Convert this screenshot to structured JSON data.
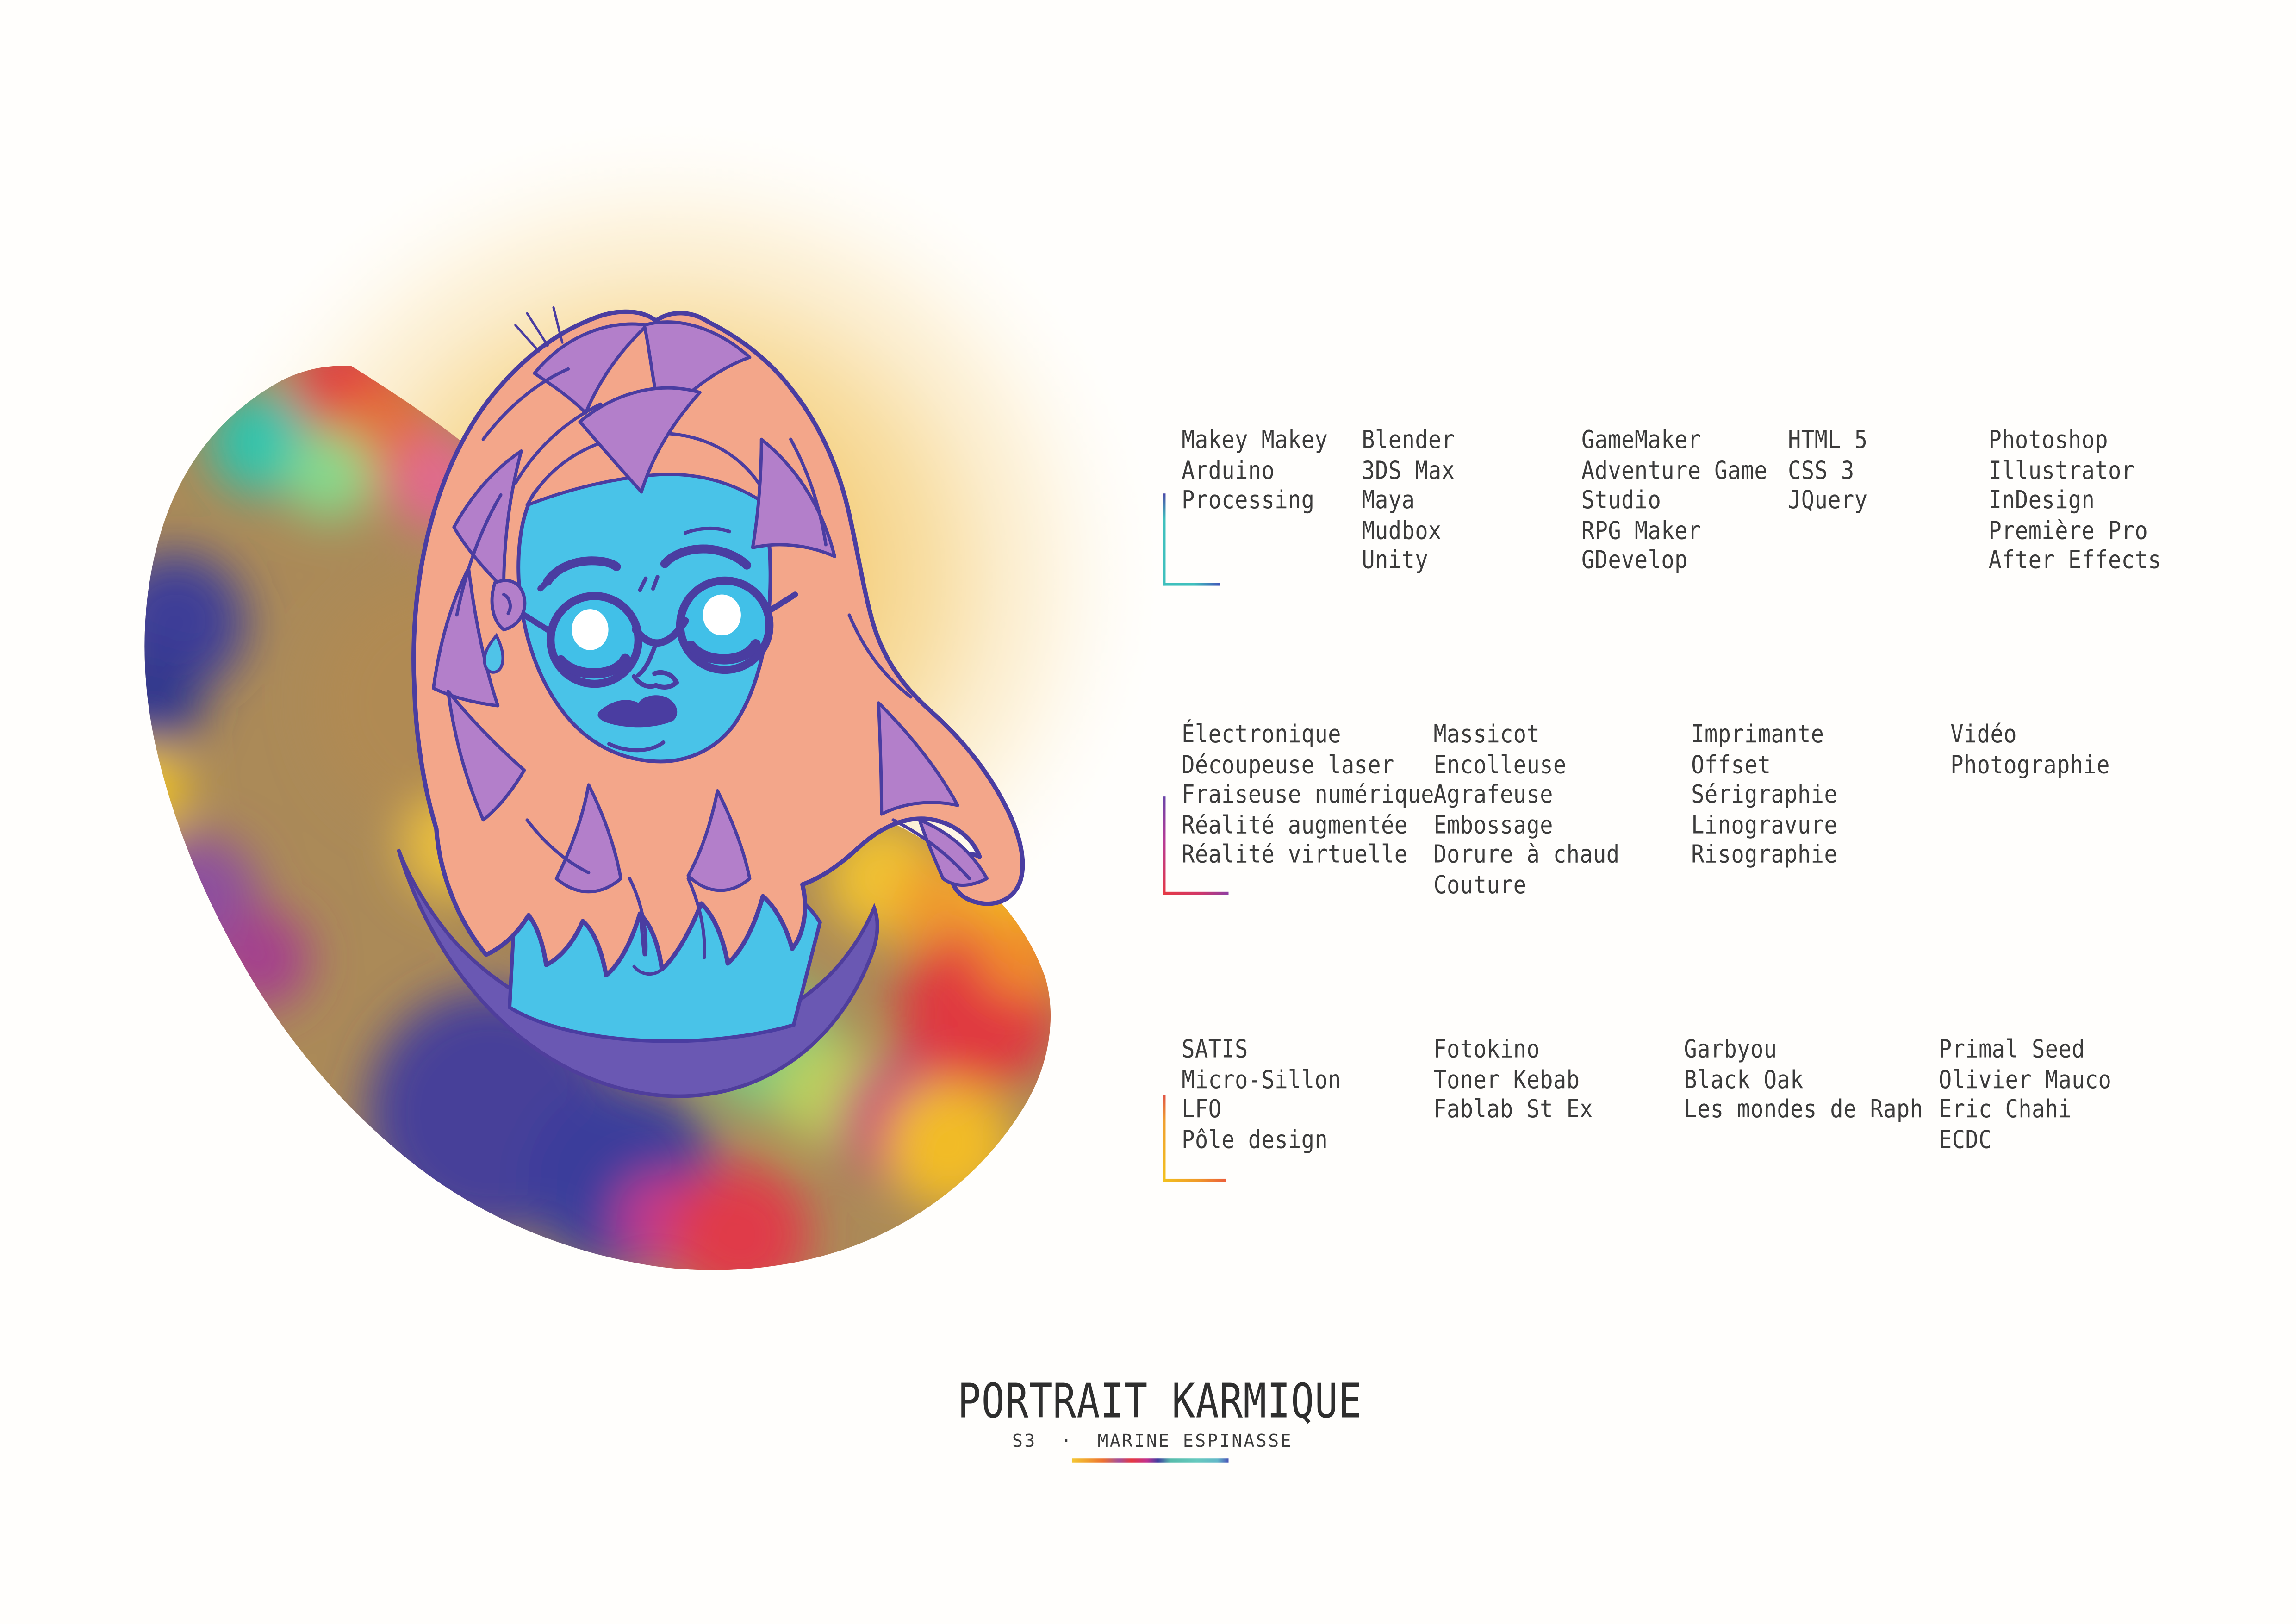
{
  "page": {
    "title": "PORTRAIT KARMIQUE",
    "subtitle_code": "S3",
    "subtitle_sep": "·",
    "subtitle_name": "MARINE ESPINASSE"
  },
  "skills": {
    "digital_tools": {
      "columns": [
        [
          "Makey Makey",
          "Arduino",
          "Processing"
        ],
        [
          "Blender",
          "3DS Max",
          "Maya",
          "Mudbox",
          "Unity"
        ],
        [
          "GameMaker",
          "Adventure Game",
          "Studio",
          "RPG Maker",
          "GDevelop"
        ],
        [
          "HTML 5",
          "CSS 3",
          "JQuery"
        ],
        [
          "Photoshop",
          "Illustrator",
          "InDesign",
          "Première Pro",
          "After Effects"
        ]
      ]
    },
    "fabrication": {
      "columns": [
        [
          "Électronique",
          "Découpeuse laser",
          "Fraiseuse numérique",
          "Réalité augmentée",
          "Réalité virtuelle"
        ],
        [
          "Massicot",
          "Encolleuse",
          "Agrafeuse",
          "Embossage",
          "Dorure à chaud",
          "Couture"
        ],
        [
          "Imprimante",
          "Offset",
          "Sérigraphie",
          "Linogravure",
          "Risographie"
        ],
        [
          "Vidéo",
          "Photographie"
        ]
      ]
    },
    "references": {
      "columns": [
        [
          "SATIS",
          "Micro-Sillon",
          "LFO",
          "Pôle design"
        ],
        [
          "Fotokino",
          "Toner Kebab",
          "Fablab St Ex"
        ],
        [
          "Garbyou",
          "Black Oak",
          "Les mondes de Raph"
        ],
        [
          "Primal Seed",
          "Olivier Mauco",
          "Eric Chahi",
          "ECDC"
        ]
      ]
    }
  },
  "palette": {
    "text": "#3b3b3b",
    "outline_indigo": "#4a3da1",
    "face_blue": "#49c3e8",
    "lens_blue": "#41c0e8",
    "hair_salmon": "#f3a68a",
    "hair_purple": "#b37fca",
    "bust_purple": "#6a58b3",
    "bust_edge": "#4f3e9c",
    "glow_yellow": "#f5d286",
    "tear_cyan": "#4fc3e8",
    "blob_red": "#e23a42",
    "blob_teal": "#2fc4ad",
    "blob_yellow": "#f2c51c",
    "blob_indigo": "#3d3c98",
    "blob_magenta": "#c03a8e"
  },
  "gradients": {
    "bracket1_v": "background:linear-gradient(180deg,#4b4ba8 0%,#3fc0bd 28%,#3fc0bd 100%)",
    "bracket1_h": "background:linear-gradient(90deg,#3fc0bd 0%,#3fc0bd 55%,#4156b8 100%)",
    "bracket2_v": "background:linear-gradient(180deg,#6a44a8 0%,#b63b96 45%,#e63a44 100%)",
    "bracket2_h": "background:linear-gradient(90deg,#e63a44 0%,#d23767 55%,#8f3fa4 100%)",
    "bracket3_v": "background:linear-gradient(180deg,#e05545 0%,#f0a030 30%,#f2c11e 100%)",
    "bracket3_h": "background:linear-gradient(90deg,#f2c11e 0%,#f09a28 55%,#ec5f3a 100%)",
    "underline": "background:linear-gradient(90deg,#f4c733 0%,#f1a02f 10%,#ed7031 20%,#a4509c 30%,#e6383f 38%,#c13090 48%,#3f3fa0 55%,#57bcab 63%,#66c9be 80%,#63b8c8 93%,#4954b8 100%)"
  },
  "layout_note": "poster"
}
